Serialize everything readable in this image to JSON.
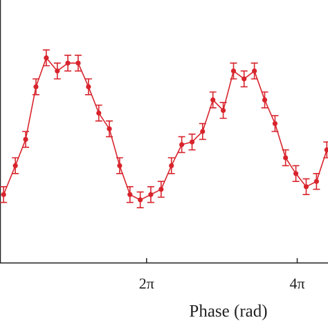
{
  "chart_data": {
    "type": "line",
    "xlabel": "Phase (rad)",
    "x": [
      0.32,
      0.81,
      1.24,
      1.67,
      2.1,
      2.56,
      3.0,
      3.43,
      3.86,
      4.29,
      4.73,
      5.16,
      5.59,
      6.02,
      6.46,
      6.89,
      7.32,
      7.75,
      8.18,
      8.62,
      9.05,
      9.48,
      9.91,
      10.35,
      10.78,
      11.21,
      11.64,
      12.08,
      12.51,
      12.94,
      13.37,
      13.8
    ],
    "series": [
      {
        "color": "#d8242c",
        "values": [
          0.26,
          0.37,
          0.47,
          0.67,
          0.78,
          0.73,
          0.76,
          0.76,
          0.67,
          0.57,
          0.51,
          0.37,
          0.26,
          0.24,
          0.26,
          0.28,
          0.37,
          0.45,
          0.46,
          0.5,
          0.62,
          0.58,
          0.73,
          0.7,
          0.73,
          0.62,
          0.53,
          0.4,
          0.34,
          0.29,
          0.31,
          0.43
        ],
        "errors": [
          0.03,
          0.03,
          0.03,
          0.03,
          0.03,
          0.03,
          0.03,
          0.03,
          0.03,
          0.03,
          0.03,
          0.03,
          0.03,
          0.03,
          0.03,
          0.03,
          0.03,
          0.03,
          0.03,
          0.03,
          0.03,
          0.03,
          0.03,
          0.03,
          0.03,
          0.03,
          0.03,
          0.03,
          0.03,
          0.03,
          0.03,
          0.03
        ]
      }
    ],
    "xlim": [
      0.17,
      13.85
    ],
    "ylim": [
      0,
      1
    ],
    "xticks": [
      {
        "value": 6.283,
        "label": "2π"
      },
      {
        "value": 12.566,
        "label": "4π"
      }
    ]
  }
}
